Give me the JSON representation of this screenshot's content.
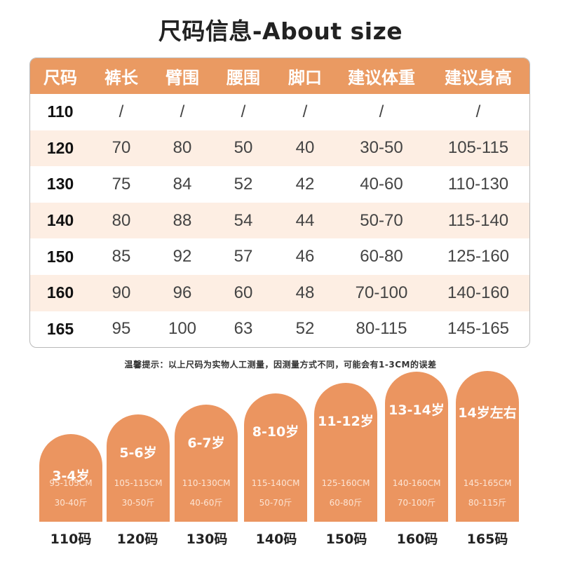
{
  "title": "尺码信息-About size",
  "table": {
    "headers": [
      "尺码",
      "裤长",
      "臂围",
      "腰围",
      "脚口",
      "建议体重",
      "建议身高"
    ],
    "rows": [
      [
        "110",
        "/",
        "/",
        "/",
        "/",
        "/",
        "/"
      ],
      [
        "120",
        "70",
        "80",
        "50",
        "40",
        "30-50",
        "105-115"
      ],
      [
        "130",
        "75",
        "84",
        "52",
        "42",
        "40-60",
        "110-130"
      ],
      [
        "140",
        "80",
        "88",
        "54",
        "44",
        "50-70",
        "115-140"
      ],
      [
        "150",
        "85",
        "92",
        "57",
        "46",
        "60-80",
        "125-160"
      ],
      [
        "160",
        "90",
        "96",
        "60",
        "48",
        "70-100",
        "140-160"
      ],
      [
        "165",
        "95",
        "100",
        "63",
        "52",
        "80-115",
        "145-165"
      ]
    ]
  },
  "note": "温馨提示：以上尺码为实物人工测量，因测量方式不同，可能会有1-3CM的误差",
  "cards": [
    {
      "age": "3-4岁",
      "height": "95-105CM",
      "weight": "30-40斤",
      "size": "110码"
    },
    {
      "age": "5-6岁",
      "height": "105-115CM",
      "weight": "30-50斤",
      "size": "120码"
    },
    {
      "age": "6-7岁",
      "height": "110-130CM",
      "weight": "40-60斤",
      "size": "130码"
    },
    {
      "age": "8-10岁",
      "height": "115-140CM",
      "weight": "50-70斤",
      "size": "140码"
    },
    {
      "age": "11-12岁",
      "height": "125-160CM",
      "weight": "60-80斤",
      "size": "150码"
    },
    {
      "age": "13-14岁",
      "height": "140-160CM",
      "weight": "70-100斤",
      "size": "160码"
    },
    {
      "age": "14岁左右",
      "height": "145-165CM",
      "weight": "80-115斤",
      "size": "165码"
    }
  ],
  "colors": {
    "accent": "#eb9560",
    "row_tint": "#fdeee3"
  }
}
